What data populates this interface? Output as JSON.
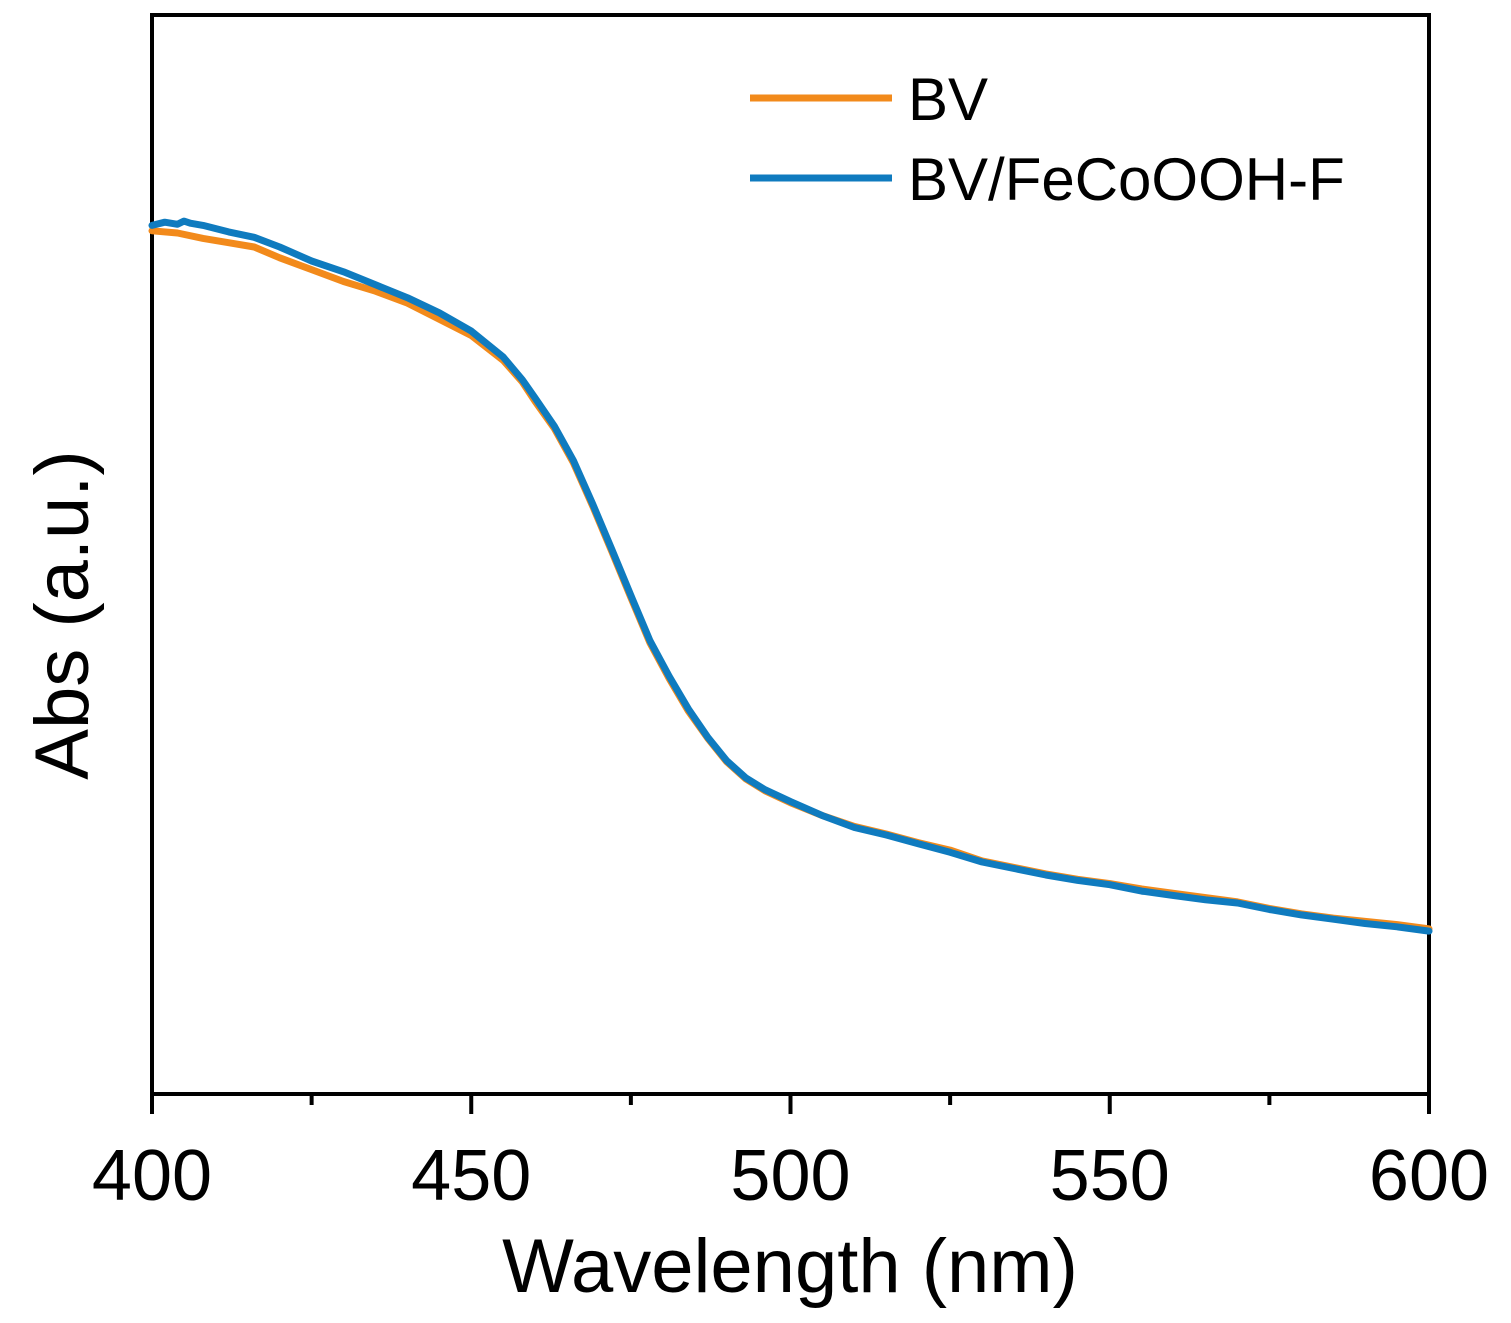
{
  "chart_data": {
    "type": "line",
    "title": "",
    "xlabel": "Wavelength (nm)",
    "ylabel": "Abs (a.u.)",
    "xlim": [
      400,
      600
    ],
    "ylim": [
      0,
      1.0
    ],
    "x_major_ticks": [
      400,
      450,
      500,
      550,
      600
    ],
    "x_minor_ticks": [
      425,
      475,
      525,
      575
    ],
    "x_tick_labels": [
      "400",
      "450",
      "500",
      "550",
      "600"
    ],
    "y_ticks_shown": false,
    "legend_position": "top-right",
    "series": [
      {
        "name": "BV",
        "color": "#F28A1B",
        "x": [
          400,
          404,
          408,
          412,
          416,
          420,
          425,
          430,
          435,
          440,
          445,
          450,
          455,
          458,
          460,
          463,
          466,
          469,
          472,
          475,
          478,
          481,
          484,
          487,
          490,
          493,
          496,
          500,
          505,
          510,
          515,
          520,
          525,
          530,
          535,
          540,
          545,
          550,
          555,
          560,
          565,
          570,
          575,
          580,
          585,
          590,
          595,
          600
        ],
        "y": [
          0.8,
          0.798,
          0.793,
          0.789,
          0.785,
          0.775,
          0.764,
          0.753,
          0.744,
          0.733,
          0.718,
          0.703,
          0.68,
          0.66,
          0.642,
          0.617,
          0.585,
          0.545,
          0.503,
          0.46,
          0.418,
          0.385,
          0.355,
          0.33,
          0.308,
          0.292,
          0.281,
          0.27,
          0.258,
          0.248,
          0.241,
          0.233,
          0.226,
          0.216,
          0.21,
          0.204,
          0.199,
          0.195,
          0.19,
          0.186,
          0.182,
          0.178,
          0.172,
          0.167,
          0.163,
          0.16,
          0.157,
          0.153
        ]
      },
      {
        "name": "BV/FeCoOOH-F",
        "color": "#0F7BBF",
        "x": [
          400,
          402,
          404,
          405,
          406,
          408,
          412,
          416,
          420,
          425,
          430,
          435,
          440,
          445,
          450,
          455,
          458,
          460,
          463,
          466,
          469,
          472,
          475,
          478,
          481,
          484,
          487,
          490,
          493,
          496,
          500,
          505,
          510,
          515,
          520,
          525,
          530,
          535,
          540,
          545,
          550,
          555,
          560,
          565,
          570,
          575,
          580,
          585,
          590,
          595,
          600
        ],
        "y": [
          0.805,
          0.808,
          0.806,
          0.809,
          0.807,
          0.805,
          0.799,
          0.794,
          0.785,
          0.772,
          0.762,
          0.75,
          0.738,
          0.724,
          0.707,
          0.683,
          0.662,
          0.645,
          0.619,
          0.587,
          0.547,
          0.505,
          0.462,
          0.42,
          0.387,
          0.357,
          0.331,
          0.309,
          0.293,
          0.282,
          0.271,
          0.258,
          0.247,
          0.24,
          0.232,
          0.224,
          0.215,
          0.209,
          0.203,
          0.198,
          0.194,
          0.188,
          0.184,
          0.18,
          0.177,
          0.171,
          0.166,
          0.162,
          0.158,
          0.155,
          0.151
        ]
      }
    ]
  }
}
